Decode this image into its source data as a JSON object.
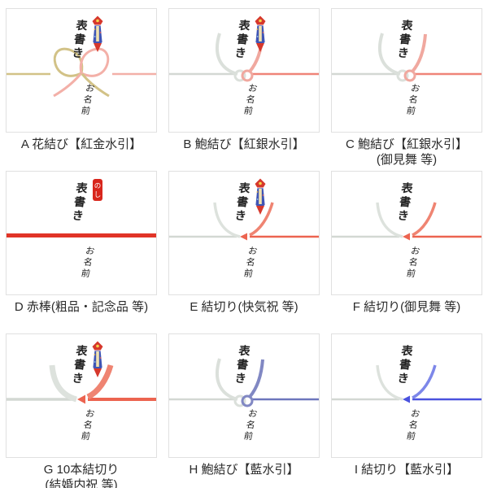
{
  "shared": {
    "top_script_label": "表書き",
    "bottom_script_label": "お名前"
  },
  "colors": {
    "silver_band": "#dbe0db",
    "silver_line": "#d3d8d3",
    "card_border": "#e0e0e0",
    "caption_text": "#2b2b2b",
    "ornament_red": "#d6382c",
    "ornament_blue": "#3f55b5",
    "ornament_gold": "#f0e2b0",
    "stamp_red": "#d8261c"
  },
  "stamp_text": "のし",
  "cards": [
    {
      "id": "A",
      "knot_type": "hana",
      "ornament": "noshi",
      "caption_lines": [
        "A 花結び【紅金水引】"
      ],
      "band_left": "#d2c287",
      "band_right": "#f3b0a8",
      "line_left": "#d2c287",
      "line_right": "#f3b0a8"
    },
    {
      "id": "B",
      "knot_type": "awabi",
      "ornament": "noshi",
      "caption_lines": [
        "B 鮑結び【紅銀水引】"
      ],
      "band_left": "#dbe0db",
      "band_right": "#f0a89f",
      "line_left": "#d3d8d3",
      "line_right": "#ef8478"
    },
    {
      "id": "C",
      "knot_type": "awabi",
      "ornament": null,
      "caption_lines": [
        "C 鮑結び【紅銀水引】",
        "(御見舞 等)"
      ],
      "band_left": "#dbe0db",
      "band_right": "#f0a89f",
      "line_left": "#d3d8d3",
      "line_right": "#ef8478"
    },
    {
      "id": "D",
      "knot_type": "bar",
      "ornament": "stamp",
      "caption_lines": [
        "D 赤棒(粗品・記念品 等)"
      ],
      "bar_color": "#e13427"
    },
    {
      "id": "E",
      "knot_type": "kiri",
      "ornament": "noshi",
      "caption_lines": [
        "E 結切り(快気祝 等)"
      ],
      "band_left": "#dde2dd",
      "band_right": "#ef8472",
      "line_left": "#d3d8d3",
      "line_right": "#ec6450"
    },
    {
      "id": "F",
      "knot_type": "kiri",
      "ornament": null,
      "caption_lines": [
        "F 結切り(御見舞 等)"
      ],
      "band_left": "#dde2dd",
      "band_right": "#ef8472",
      "line_left": "#d3d8d3",
      "line_right": "#ec6450"
    },
    {
      "id": "G",
      "knot_type": "kiri10",
      "ornament": "noshi",
      "caption_lines": [
        "G 10本結切り",
        "(結婚内祝 等)"
      ],
      "band_left": "#dde2dd",
      "band_right": "#ef8472",
      "line_left": "#d3d8d3",
      "line_right": "#ec6450"
    },
    {
      "id": "H",
      "knot_type": "awabi",
      "ornament": null,
      "caption_lines": [
        "H 鮑結び【藍水引】"
      ],
      "band_left": "#dbe0db",
      "band_right": "#8188c3",
      "line_left": "#d3d8d3",
      "line_right": "#6d76bc"
    },
    {
      "id": "I",
      "knot_type": "kiri",
      "ornament": null,
      "caption_lines": [
        "I 結切り【藍水引】"
      ],
      "band_left": "#dde2dd",
      "band_right": "#7d87e9",
      "line_left": "#d3d8d3",
      "line_right": "#4a52de"
    }
  ]
}
